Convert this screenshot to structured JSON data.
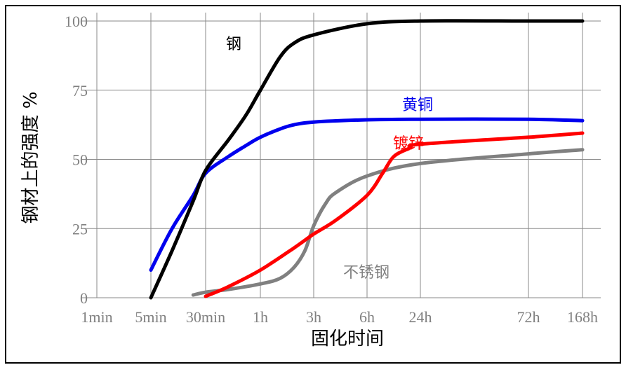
{
  "chart_data": {
    "type": "line",
    "xlabel": "固化时间",
    "ylabel": "钢材上的强度 %",
    "x_ticks": [
      "1min",
      "5min",
      "30min",
      "1h",
      "3h",
      "6h",
      "24h",
      "72h",
      "168h"
    ],
    "y_ticks": [
      "0",
      "25",
      "50",
      "75",
      "100"
    ],
    "ylim": [
      0,
      100
    ],
    "grid": true,
    "series": [
      {
        "name": "钢",
        "color": "#000000",
        "points": [
          [
            "5min",
            0
          ],
          [
            "10min",
            17
          ],
          [
            "20min",
            35
          ],
          [
            "30min",
            46
          ],
          [
            "40min",
            57
          ],
          [
            "50min",
            66
          ],
          [
            "1h",
            75
          ],
          [
            "1.5h",
            87
          ],
          [
            "2h",
            92
          ],
          [
            "3h",
            95
          ],
          [
            "6h",
            99
          ],
          [
            "24h",
            100
          ],
          [
            "72h",
            100
          ],
          [
            "168h",
            100
          ]
        ]
      },
      {
        "name": "黄铜",
        "color": "#0000ee",
        "points": [
          [
            "5min",
            10
          ],
          [
            "10min",
            25
          ],
          [
            "20min",
            37
          ],
          [
            "30min",
            45
          ],
          [
            "40min",
            51
          ],
          [
            "50min",
            55
          ],
          [
            "1h",
            58
          ],
          [
            "1.5h",
            61
          ],
          [
            "2h",
            62.5
          ],
          [
            "3h",
            63.5
          ],
          [
            "6h",
            64.3
          ],
          [
            "24h",
            64.5
          ],
          [
            "72h",
            64.5
          ],
          [
            "168h",
            64
          ]
        ]
      },
      {
        "name": "镀锌",
        "color": "#ff0000",
        "points": [
          [
            "30min",
            0.5
          ],
          [
            "40min",
            4
          ],
          [
            "1h",
            10
          ],
          [
            "2h",
            18
          ],
          [
            "3h",
            23
          ],
          [
            "4h",
            28
          ],
          [
            "6h",
            37
          ],
          [
            "9h",
            45
          ],
          [
            "12h",
            51
          ],
          [
            "18h",
            54
          ],
          [
            "24h",
            55.5
          ],
          [
            "72h",
            58
          ],
          [
            "168h",
            59.5
          ]
        ]
      },
      {
        "name": "不锈钢",
        "color": "#808080",
        "points": [
          [
            "20min",
            1
          ],
          [
            "30min",
            2
          ],
          [
            "40min",
            3
          ],
          [
            "1h",
            5
          ],
          [
            "1.5h",
            7
          ],
          [
            "2h",
            11
          ],
          [
            "2.5h",
            17
          ],
          [
            "3h",
            26
          ],
          [
            "3.5h",
            34
          ],
          [
            "4h",
            38
          ],
          [
            "6h",
            44
          ],
          [
            "24h",
            48.5
          ],
          [
            "72h",
            52
          ],
          [
            "168h",
            53.5
          ]
        ]
      }
    ]
  }
}
